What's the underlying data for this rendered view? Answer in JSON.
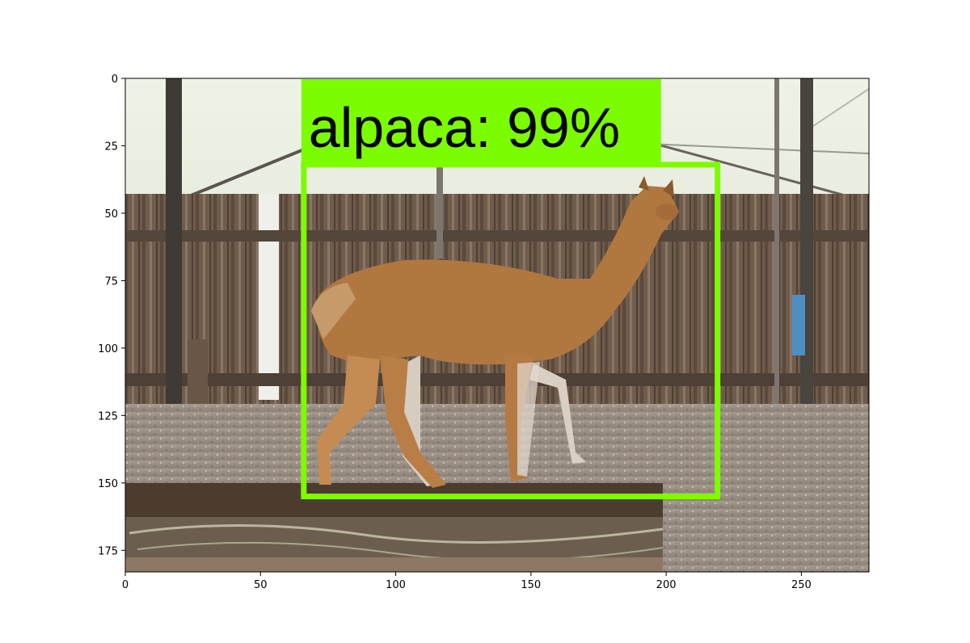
{
  "image": {
    "subject": "alpaca",
    "detections": [
      {
        "label_text": "alpaca: 99%",
        "class": "alpaca",
        "score_percent": 99,
        "box_data": {
          "x_min": 66,
          "y_min": 32,
          "x_max": 219,
          "y_max": 155
        }
      }
    ],
    "box_color": "#7cfc00"
  },
  "axes": {
    "x_ticks": [
      "0",
      "50",
      "100",
      "150",
      "200",
      "250"
    ],
    "y_ticks": [
      "0",
      "25",
      "50",
      "75",
      "100",
      "125",
      "150",
      "175"
    ],
    "xlim": [
      0,
      275
    ],
    "ylim": [
      0,
      183
    ]
  }
}
